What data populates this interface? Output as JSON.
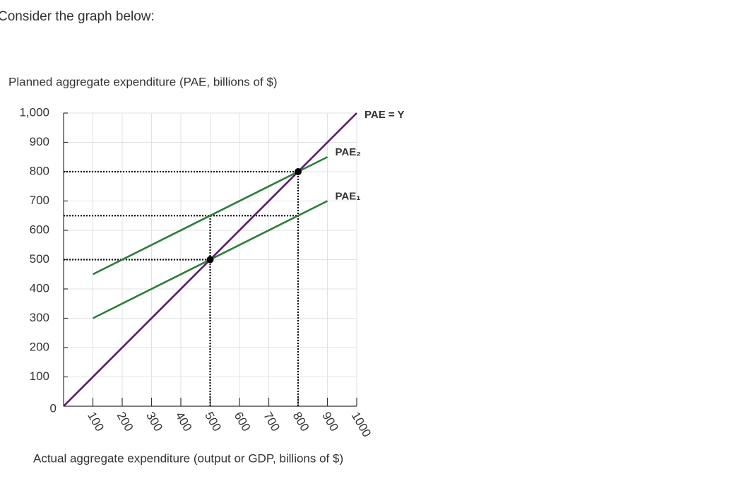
{
  "prompt": "Consider the graph below:",
  "chart_data": {
    "type": "line",
    "ylabel": "Planned aggregate expenditure (PAE, billions of $)",
    "xlabel": "Actual aggregate expenditure (output or GDP, billions of $)",
    "xlim": [
      0,
      1000
    ],
    "ylim": [
      0,
      1000
    ],
    "xticks": [
      100,
      200,
      300,
      400,
      500,
      600,
      700,
      800,
      900,
      1000
    ],
    "yticks": [
      0,
      100,
      200,
      300,
      400,
      500,
      600,
      700,
      800,
      900,
      {
        "value": 1000,
        "label": "1,000"
      }
    ],
    "grid": true,
    "series": [
      {
        "name": "PAE = Y",
        "color": "#5b1a6e",
        "x": [
          0,
          1000
        ],
        "values": [
          0,
          1000
        ]
      },
      {
        "name": "PAE₂",
        "color": "#2e7d3c",
        "x": [
          100,
          900
        ],
        "values": [
          450,
          850
        ]
      },
      {
        "name": "PAE₁",
        "color": "#2e7d3c",
        "x": [
          100,
          900
        ],
        "values": [
          300,
          700
        ]
      }
    ],
    "guides": [
      {
        "x": [
          0,
          800
        ],
        "y": [
          800,
          800
        ]
      },
      {
        "x": [
          0,
          800
        ],
        "y": [
          650,
          650
        ]
      },
      {
        "x": [
          0,
          500
        ],
        "y": [
          500,
          500
        ]
      },
      {
        "x": [
          500,
          500
        ],
        "y": [
          0,
          650
        ]
      },
      {
        "x": [
          800,
          800
        ],
        "y": [
          0,
          800
        ]
      }
    ],
    "points": {
      "x": [
        500,
        800
      ],
      "y": [
        500,
        800
      ]
    }
  }
}
